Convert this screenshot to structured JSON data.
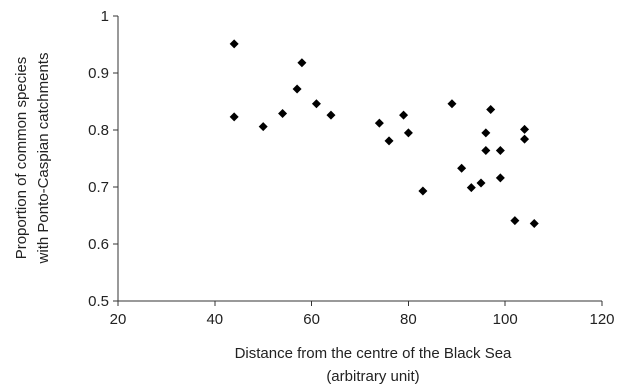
{
  "chart_data": {
    "type": "scatter",
    "title": "",
    "xlabel": [
      "Distance from the centre of the Black Sea",
      "(arbitrary unit)"
    ],
    "ylabel": [
      "Proportion of common species",
      "with Ponto-Caspian catchments"
    ],
    "xlim": [
      20,
      120
    ],
    "ylim": [
      0.5,
      1
    ],
    "x_ticks": [
      "20",
      "40",
      "60",
      "80",
      "100",
      "120"
    ],
    "y_ticks": [
      "0.5",
      "0.6",
      "0.7",
      "0.8",
      "0.9",
      "1"
    ],
    "grid": false,
    "legend": "none",
    "marker": "diamond",
    "marker_color": "#000000",
    "points": [
      {
        "x": 44,
        "y": 0.951
      },
      {
        "x": 44,
        "y": 0.823
      },
      {
        "x": 50,
        "y": 0.806
      },
      {
        "x": 54,
        "y": 0.829
      },
      {
        "x": 57,
        "y": 0.872
      },
      {
        "x": 58,
        "y": 0.918
      },
      {
        "x": 61,
        "y": 0.846
      },
      {
        "x": 64,
        "y": 0.826
      },
      {
        "x": 74,
        "y": 0.812
      },
      {
        "x": 76,
        "y": 0.781
      },
      {
        "x": 79,
        "y": 0.826
      },
      {
        "x": 80,
        "y": 0.795
      },
      {
        "x": 83,
        "y": 0.693
      },
      {
        "x": 89,
        "y": 0.846
      },
      {
        "x": 91,
        "y": 0.733
      },
      {
        "x": 93,
        "y": 0.699
      },
      {
        "x": 95,
        "y": 0.707
      },
      {
        "x": 96,
        "y": 0.795
      },
      {
        "x": 96,
        "y": 0.764
      },
      {
        "x": 97,
        "y": 0.836
      },
      {
        "x": 99,
        "y": 0.764
      },
      {
        "x": 99,
        "y": 0.716
      },
      {
        "x": 102,
        "y": 0.641
      },
      {
        "x": 104,
        "y": 0.801
      },
      {
        "x": 104,
        "y": 0.784
      },
      {
        "x": 106,
        "y": 0.636
      }
    ]
  }
}
